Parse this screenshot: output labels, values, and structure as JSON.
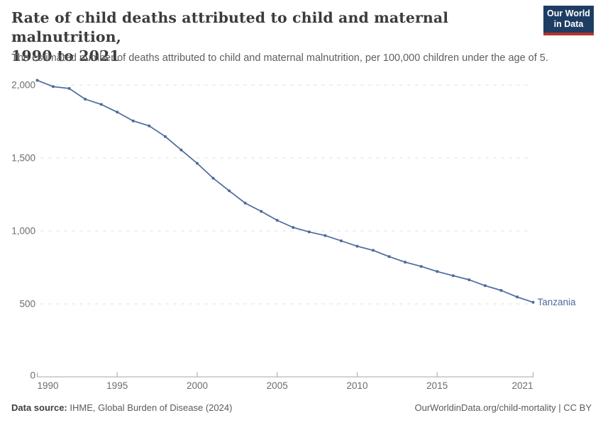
{
  "header": {
    "title_line1": "Rate of child deaths attributed to child and maternal malnutrition,",
    "title_line2": "1990 to 2021",
    "subtitle": "The estimated number of deaths attributed to child and maternal malnutrition, per 100,000 children under the age of 5.",
    "logo": {
      "line1": "Our World",
      "line2": "in Data",
      "bg_color": "#1d3d63",
      "accent_color": "#b5332a"
    }
  },
  "chart_data": {
    "type": "line",
    "title": "Rate of child deaths attributed to child and maternal malnutrition, 1990 to 2021",
    "xlabel": "",
    "ylabel": "",
    "xlim": [
      1990,
      2021
    ],
    "ylim": [
      0,
      2000
    ],
    "grid": "horizontal-dashed",
    "legend_position": "end-of-line-label",
    "x_ticks": [
      1990,
      1995,
      2000,
      2005,
      2010,
      2015,
      2021
    ],
    "y_ticks": [
      0,
      500,
      1000,
      1500,
      2000
    ],
    "y_tick_labels": [
      "0",
      "500",
      "1,000",
      "1,500",
      "2,000"
    ],
    "axis_color": "#a5a5a5",
    "grid_color": "#e0e0e0",
    "tick_label_color": "#6d6d6d",
    "series": [
      {
        "name": "Tanzania",
        "color": "#4c6a9c",
        "x": [
          1990,
          1991,
          1992,
          1993,
          1994,
          1995,
          1996,
          1997,
          1998,
          1999,
          2000,
          2001,
          2002,
          2003,
          2004,
          2005,
          2006,
          2007,
          2008,
          2009,
          2010,
          2011,
          2012,
          2013,
          2014,
          2015,
          2016,
          2017,
          2018,
          2019,
          2020,
          2021
        ],
        "values": [
          2032,
          1989,
          1976,
          1903,
          1867,
          1814,
          1754,
          1720,
          1647,
          1555,
          1463,
          1361,
          1275,
          1191,
          1134,
          1073,
          1024,
          993,
          968,
          932,
          895,
          867,
          824,
          786,
          757,
          722,
          693,
          665,
          625,
          592,
          547,
          511
        ]
      }
    ]
  },
  "footer": {
    "source_label": "Data source:",
    "source_value": " IHME, Global Burden of Disease (2024)",
    "credit": "OurWorldinData.org/child-mortality | CC BY"
  }
}
